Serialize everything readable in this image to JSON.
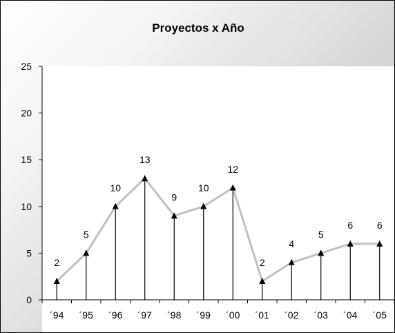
{
  "chart_data": {
    "type": "line",
    "title": "Proyectos x Año",
    "categories": [
      "´94",
      "´95",
      "´96",
      "´97",
      "´98",
      "´99",
      "´00",
      "´01",
      "´02",
      "´03",
      "´04",
      "´05"
    ],
    "values": [
      2,
      5,
      10,
      13,
      9,
      10,
      12,
      2,
      4,
      5,
      6,
      6
    ],
    "data_labels": [
      "2",
      "5",
      "10",
      "13",
      "9",
      "10",
      "12",
      "2",
      "4",
      "5",
      "6",
      "6"
    ],
    "ylim": [
      0,
      25
    ],
    "yticks": [
      0,
      5,
      10,
      15,
      20,
      25
    ],
    "ytick_labels": [
      "0",
      "5",
      "10",
      "15",
      "20",
      "25"
    ],
    "xlabel": "",
    "ylabel": "",
    "grid": false,
    "drop_lines": true,
    "marker": "triangle",
    "legend": "none",
    "colors": {
      "line": "#c0c0c0",
      "marker": "#000000",
      "axis": "#000000",
      "plot_background": "#ffffff"
    }
  }
}
